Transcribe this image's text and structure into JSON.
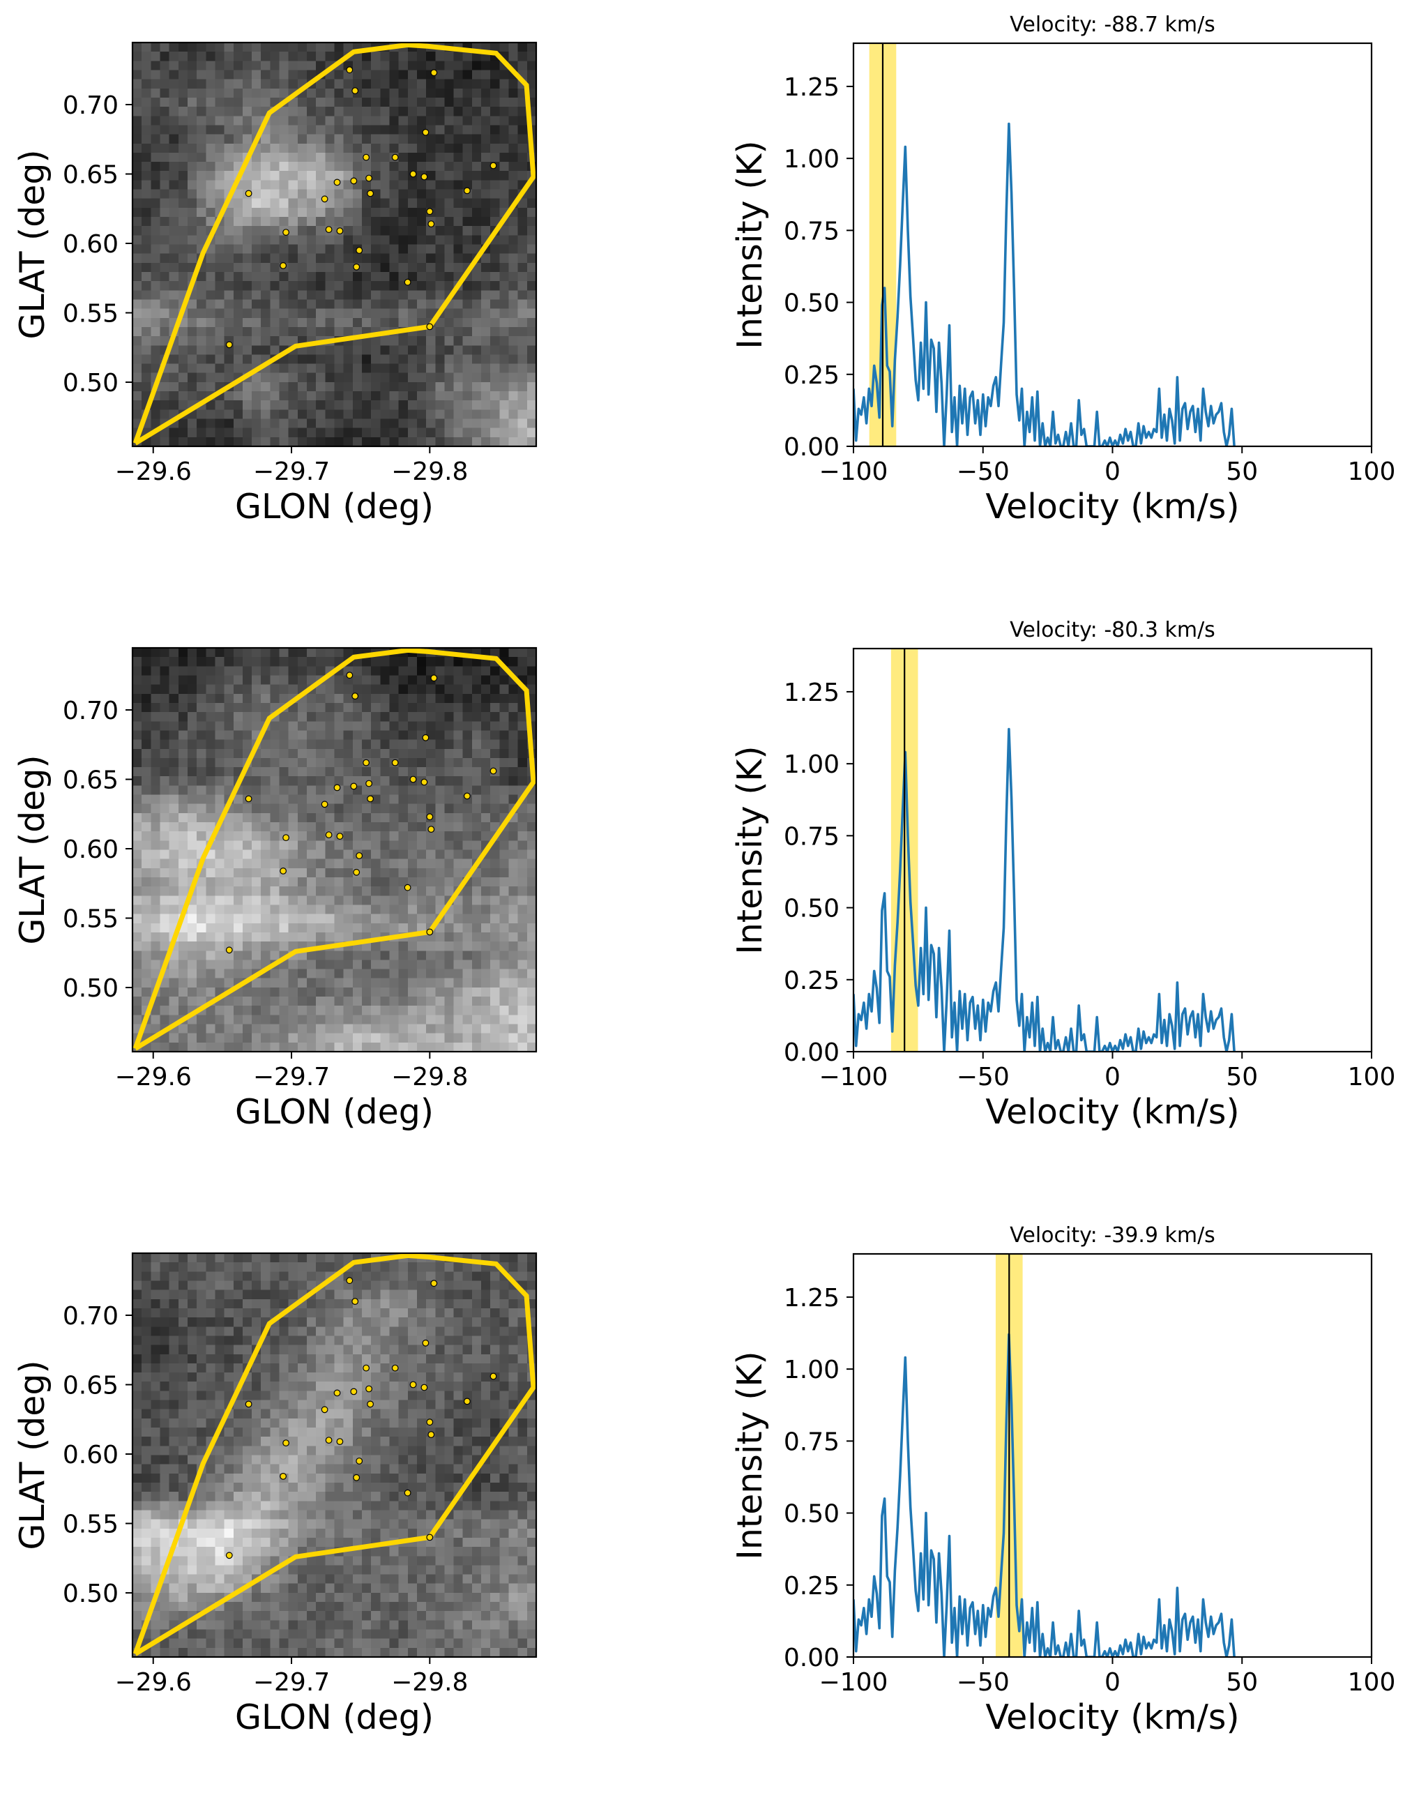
{
  "figure": {
    "panels_per_row": [
      "map",
      "spectrum"
    ],
    "rows": [
      {
        "title": "Velocity: -88.7 km/s",
        "selected_velocity_kms": -88.7,
        "map_key": "map_1"
      },
      {
        "title": "Velocity: -80.3 km/s",
        "selected_velocity_kms": -80.3,
        "map_key": "map_2"
      },
      {
        "title": "Velocity: -39.9 km/s",
        "selected_velocity_kms": -39.9,
        "map_key": "map_3"
      }
    ]
  },
  "chart_data": [
    {
      "type": "heatmap",
      "name": "channel maps",
      "xlabel": "GLON (deg)",
      "ylabel": "GLAT (deg)",
      "xlim": [
        -29.585,
        -29.877
      ],
      "ylim": [
        0.4538,
        0.7447
      ],
      "xticks": [
        -29.6,
        -29.7,
        -29.8
      ],
      "xtick_labels": [
        "−29.6",
        "−29.7",
        "−29.8"
      ],
      "yticks": [
        0.5,
        0.55,
        0.6,
        0.65,
        0.7
      ],
      "ytick_labels": [
        "0.50",
        "0.55",
        "0.60",
        "0.65",
        "0.70"
      ],
      "colormap": "gray",
      "grid": false,
      "polygon_color": "#FFD700",
      "point_color": "#FFD700",
      "point_edge_color": "#000000",
      "polygon_glon_glat": [
        [
          -29.587,
          0.456
        ],
        [
          -29.636,
          0.593
        ],
        [
          -29.684,
          0.694
        ],
        [
          -29.745,
          0.738
        ],
        [
          -29.784,
          0.743
        ],
        [
          -29.799,
          0.742
        ],
        [
          -29.848,
          0.737
        ],
        [
          -29.87,
          0.714
        ],
        [
          -29.875,
          0.648
        ],
        [
          -29.8,
          0.54
        ],
        [
          -29.703,
          0.526
        ],
        [
          -29.587,
          0.456
        ]
      ],
      "points_glon_glat": [
        [
          -29.742,
          0.725
        ],
        [
          -29.746,
          0.71
        ],
        [
          -29.803,
          0.723
        ],
        [
          -29.797,
          0.68
        ],
        [
          -29.754,
          0.662
        ],
        [
          -29.775,
          0.662
        ],
        [
          -29.788,
          0.65
        ],
        [
          -29.796,
          0.648
        ],
        [
          -29.846,
          0.656
        ],
        [
          -29.827,
          0.638
        ],
        [
          -29.756,
          0.647
        ],
        [
          -29.757,
          0.636
        ],
        [
          -29.745,
          0.645
        ],
        [
          -29.733,
          0.644
        ],
        [
          -29.724,
          0.632
        ],
        [
          -29.669,
          0.636
        ],
        [
          -29.8,
          0.623
        ],
        [
          -29.801,
          0.614
        ],
        [
          -29.696,
          0.608
        ],
        [
          -29.727,
          0.61
        ],
        [
          -29.735,
          0.609
        ],
        [
          -29.749,
          0.595
        ],
        [
          -29.694,
          0.584
        ],
        [
          -29.747,
          0.583
        ],
        [
          -29.784,
          0.572
        ],
        [
          -29.655,
          0.527
        ],
        [
          -29.8,
          0.54
        ]
      ],
      "image_grid_note": "coarse 11x11 brightness (0-255), rows top(high GLAT) to bottom, cols left(GLON -29.585) to right",
      "maps": {
        "map_1": [
          [
            70,
            55,
            75,
            85,
            70,
            60,
            55,
            50,
            45,
            40,
            55
          ],
          [
            80,
            95,
            110,
            100,
            85,
            75,
            65,
            55,
            50,
            55,
            60
          ],
          [
            60,
            70,
            90,
            130,
            110,
            90,
            70,
            60,
            60,
            55,
            50
          ],
          [
            60,
            80,
            160,
            190,
            190,
            170,
            80,
            60,
            55,
            65,
            60
          ],
          [
            65,
            90,
            150,
            200,
            160,
            140,
            70,
            55,
            60,
            55,
            65
          ],
          [
            80,
            90,
            95,
            85,
            75,
            70,
            55,
            50,
            60,
            60,
            75
          ],
          [
            85,
            80,
            80,
            70,
            70,
            55,
            45,
            55,
            60,
            65,
            75
          ],
          [
            140,
            120,
            110,
            100,
            95,
            100,
            100,
            100,
            100,
            110,
            120
          ],
          [
            90,
            85,
            70,
            70,
            65,
            60,
            50,
            60,
            75,
            80,
            85
          ],
          [
            80,
            80,
            75,
            130,
            90,
            70,
            60,
            70,
            110,
            120,
            150
          ],
          [
            65,
            60,
            50,
            80,
            70,
            50,
            45,
            55,
            90,
            130,
            170
          ]
        ],
        "map_2": [
          [
            40,
            35,
            60,
            75,
            65,
            70,
            50,
            35,
            40,
            30,
            45
          ],
          [
            55,
            60,
            90,
            110,
            95,
            100,
            80,
            45,
            50,
            60,
            55
          ],
          [
            70,
            85,
            95,
            120,
            110,
            95,
            85,
            65,
            80,
            90,
            60
          ],
          [
            75,
            80,
            90,
            95,
            100,
            100,
            95,
            85,
            90,
            95,
            60
          ],
          [
            150,
            170,
            150,
            120,
            110,
            100,
            95,
            95,
            100,
            95,
            110
          ],
          [
            180,
            200,
            200,
            180,
            150,
            120,
            110,
            110,
            110,
            110,
            120
          ],
          [
            150,
            180,
            170,
            170,
            140,
            120,
            105,
            110,
            115,
            120,
            130
          ],
          [
            200,
            230,
            220,
            210,
            190,
            170,
            160,
            150,
            150,
            140,
            160
          ],
          [
            140,
            160,
            150,
            130,
            120,
            110,
            100,
            100,
            110,
            120,
            140
          ],
          [
            120,
            130,
            120,
            110,
            110,
            115,
            120,
            130,
            150,
            170,
            190
          ],
          [
            130,
            120,
            130,
            120,
            150,
            170,
            180,
            170,
            170,
            180,
            190
          ]
        ],
        "map_3": [
          [
            90,
            90,
            100,
            85,
            90,
            100,
            90,
            110,
            90,
            80,
            85
          ],
          [
            70,
            75,
            80,
            80,
            90,
            120,
            140,
            130,
            100,
            90,
            90
          ],
          [
            60,
            70,
            80,
            90,
            100,
            130,
            140,
            110,
            95,
            90,
            90
          ],
          [
            75,
            80,
            85,
            90,
            110,
            160,
            140,
            100,
            95,
            85,
            95
          ],
          [
            80,
            85,
            90,
            110,
            150,
            170,
            120,
            100,
            90,
            70,
            80
          ],
          [
            75,
            85,
            110,
            150,
            170,
            130,
            110,
            90,
            70,
            80,
            90
          ],
          [
            75,
            90,
            120,
            170,
            150,
            120,
            100,
            85,
            80,
            70,
            80
          ],
          [
            220,
            210,
            230,
            200,
            140,
            120,
            110,
            110,
            110,
            120,
            130
          ],
          [
            180,
            200,
            210,
            150,
            110,
            100,
            100,
            100,
            105,
            110,
            115
          ],
          [
            140,
            150,
            130,
            110,
            100,
            95,
            100,
            100,
            110,
            120,
            150
          ],
          [
            100,
            90,
            100,
            90,
            95,
            110,
            100,
            95,
            110,
            120,
            110
          ]
        ]
      }
    },
    {
      "type": "line",
      "name": "spectrum",
      "xlabel": "Velocity (km/s)",
      "ylabel": "Intensity (K)",
      "xlim": [
        -100,
        100
      ],
      "ylim": [
        0,
        1.4
      ],
      "xticks": [
        -100,
        -50,
        0,
        50,
        100
      ],
      "xtick_labels": [
        "−100",
        "−50",
        "0",
        "50",
        "100"
      ],
      "yticks": [
        0.0,
        0.25,
        0.5,
        0.75,
        1.0,
        1.25
      ],
      "ytick_labels": [
        "0.00",
        "0.25",
        "0.50",
        "0.75",
        "1.00",
        "1.25"
      ],
      "grid": false,
      "line_color": "#1f77b4",
      "band_color": "#FFD700",
      "band_halfwidth_kms": 5.2,
      "marker_line_color": "#000000",
      "series": [
        {
          "name": "spectrum",
          "x_start": -100,
          "x_step": 1,
          "values": [
            0.2,
            0.02,
            0.13,
            0.11,
            0.17,
            0.08,
            0.2,
            0.14,
            0.28,
            0.22,
            0.1,
            0.49,
            0.55,
            0.28,
            0.26,
            0.07,
            0.3,
            0.45,
            0.63,
            0.84,
            1.04,
            0.75,
            0.52,
            0.38,
            0.23,
            0.16,
            0.36,
            0.2,
            0.5,
            0.18,
            0.37,
            0.34,
            0.12,
            0.36,
            0.22,
            0.0,
            0.18,
            0.42,
            0.05,
            0.17,
            0.0,
            0.21,
            0.08,
            0.2,
            0.04,
            0.17,
            0.19,
            0.08,
            0.16,
            0.04,
            0.18,
            0.07,
            0.17,
            0.14,
            0.21,
            0.24,
            0.14,
            0.29,
            0.43,
            0.81,
            1.12,
            0.88,
            0.55,
            0.18,
            0.09,
            0.2,
            0.0,
            0.12,
            0.05,
            0.17,
            0.02,
            0.19,
            0.0,
            0.08,
            0.0,
            0.03,
            0.0,
            0.12,
            0.01,
            0.04,
            0.0,
            0.0,
            0.05,
            0.0,
            0.08,
            0.0,
            0.0,
            0.16,
            0.04,
            0.06,
            0.0,
            0.0,
            0.0,
            0.0,
            0.12,
            0.0,
            0.0,
            0.02,
            0.0,
            0.03,
            0.0,
            0.02,
            0.0,
            0.04,
            0.01,
            0.06,
            0.02,
            0.05,
            0.0,
            0.0,
            0.08,
            0.01,
            0.07,
            0.03,
            0.05,
            0.03,
            0.06,
            0.05,
            0.2,
            0.03,
            0.11,
            0.02,
            0.13,
            0.09,
            0.01,
            0.24,
            0.02,
            0.13,
            0.15,
            0.06,
            0.12,
            0.14,
            0.05,
            0.13,
            0.02,
            0.2,
            0.12,
            0.07,
            0.14,
            0.08,
            0.11,
            0.12,
            0.15,
            0.05,
            0.0,
            0.04,
            0.13,
            0.0
          ]
        }
      ]
    }
  ]
}
